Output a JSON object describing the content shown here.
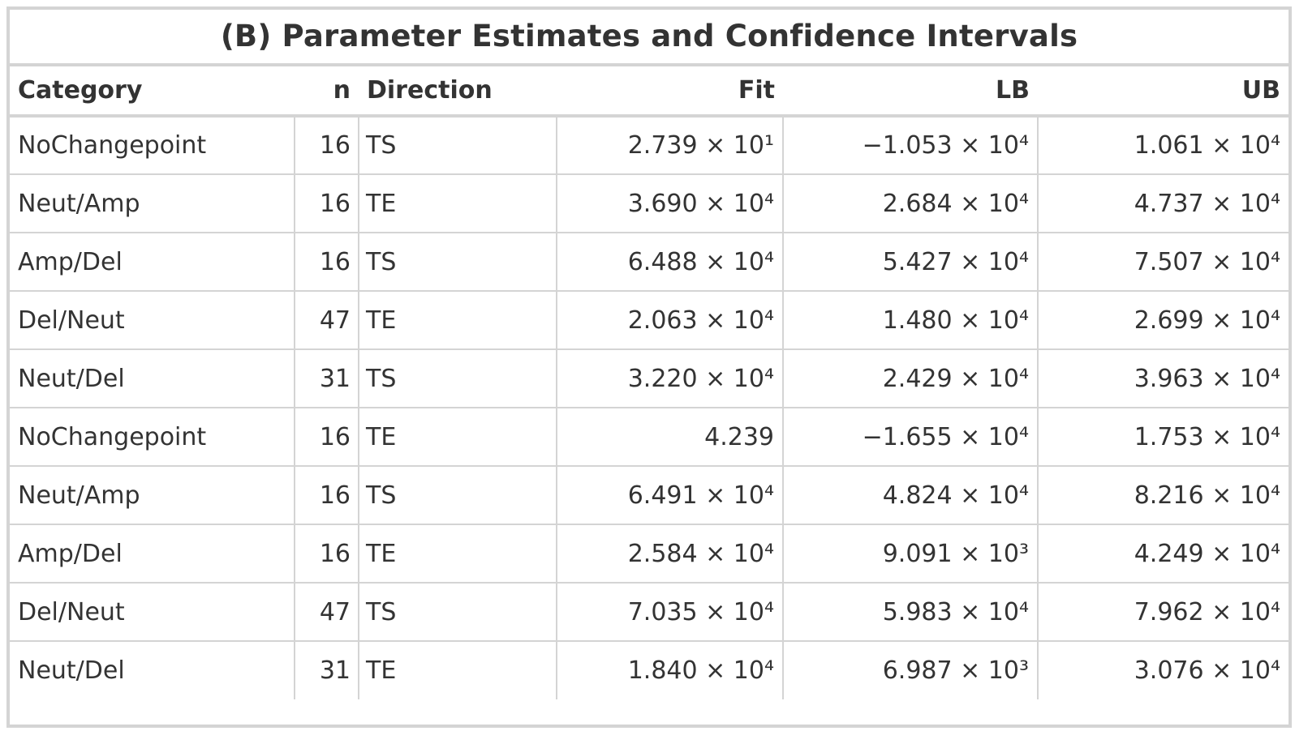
{
  "title": "(B) Parameter Estimates and Confidence Intervals",
  "headers": {
    "category": "Category",
    "n": "n",
    "direction": "Direction",
    "fit": "Fit",
    "lb": "LB",
    "ub": "UB"
  },
  "rows": [
    {
      "category": "NoChangepoint",
      "n": "16",
      "direction": "TS",
      "fit": "2.739 × 10¹",
      "lb": "−1.053 × 10⁴",
      "ub": "1.061 × 10⁴"
    },
    {
      "category": "Neut/Amp",
      "n": "16",
      "direction": "TE",
      "fit": "3.690 × 10⁴",
      "lb": "2.684 × 10⁴",
      "ub": "4.737 × 10⁴"
    },
    {
      "category": "Amp/Del",
      "n": "16",
      "direction": "TS",
      "fit": "6.488 × 10⁴",
      "lb": "5.427 × 10⁴",
      "ub": "7.507 × 10⁴"
    },
    {
      "category": "Del/Neut",
      "n": "47",
      "direction": "TE",
      "fit": "2.063 × 10⁴",
      "lb": "1.480 × 10⁴",
      "ub": "2.699 × 10⁴"
    },
    {
      "category": "Neut/Del",
      "n": "31",
      "direction": "TS",
      "fit": "3.220 × 10⁴",
      "lb": "2.429 × 10⁴",
      "ub": "3.963 × 10⁴"
    },
    {
      "category": "NoChangepoint",
      "n": "16",
      "direction": "TE",
      "fit": "4.239",
      "lb": "−1.655 × 10⁴",
      "ub": "1.753 × 10⁴"
    },
    {
      "category": "Neut/Amp",
      "n": "16",
      "direction": "TS",
      "fit": "6.491 × 10⁴",
      "lb": "4.824 × 10⁴",
      "ub": "8.216 × 10⁴"
    },
    {
      "category": "Amp/Del",
      "n": "16",
      "direction": "TE",
      "fit": "2.584 × 10⁴",
      "lb": "9.091 × 10³",
      "ub": "4.249 × 10⁴"
    },
    {
      "category": "Del/Neut",
      "n": "47",
      "direction": "TS",
      "fit": "7.035 × 10⁴",
      "lb": "5.983 × 10⁴",
      "ub": "7.962 × 10⁴"
    },
    {
      "category": "Neut/Del",
      "n": "31",
      "direction": "TE",
      "fit": "1.840 × 10⁴",
      "lb": "6.987 × 10³",
      "ub": "3.076 × 10⁴"
    }
  ]
}
